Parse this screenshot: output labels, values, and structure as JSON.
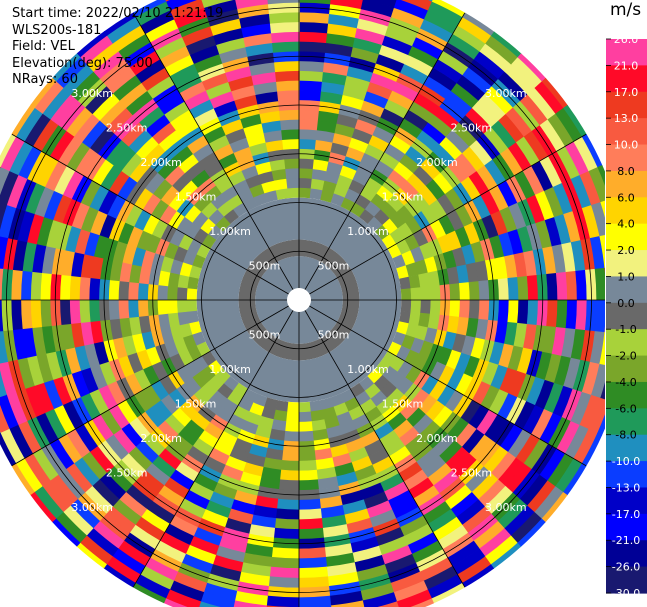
{
  "header": {
    "start_time": "Start time: 2022/02/10 21:21:19",
    "instrument": "WLS200s-181",
    "field": "Field: VEL",
    "elevation": "Elevation(deg): 75.00",
    "nrays": "NRays: 60"
  },
  "chart_data": {
    "type": "heatmap",
    "projection": "polar-ppi",
    "field": "VEL",
    "n_rays": 60,
    "max_range_km": 3.4,
    "range_rings": [
      {
        "label": "500m",
        "km": 0.5
      },
      {
        "label": "1.00km",
        "km": 1.0
      },
      {
        "label": "1.50km",
        "km": 1.5
      },
      {
        "label": "2.00km",
        "km": 2.0
      },
      {
        "label": "2.50km",
        "km": 2.5
      },
      {
        "label": "3.00km",
        "km": 3.0
      }
    ],
    "spokes_deg": [
      0,
      30,
      60,
      90,
      120,
      150,
      180,
      210,
      240,
      270,
      300,
      330
    ],
    "colorbar": {
      "unit": "m/s",
      "ticks": [
        "26.0",
        "21.0",
        "17.0",
        "13.0",
        "10.0",
        "8.0",
        "6.0",
        "4.0",
        "2.0",
        "1.0",
        "0.0",
        "-1.0",
        "-2.0",
        "-4.0",
        "-6.0",
        "-8.0",
        "-10.0",
        "-13.0",
        "-17.0",
        "-21.0",
        "-26.0",
        "-30.0"
      ],
      "colors": [
        "#ff3fa0",
        "#ff0a28",
        "#ee3a20",
        "#f85a40",
        "#ff7d5a",
        "#ffad2a",
        "#ffd400",
        "#ffff00",
        "#f2f27e",
        "#778899",
        "#696969",
        "#a8d23a",
        "#7aa62a",
        "#2f8c24",
        "#1f9a5a",
        "#1f8fbf",
        "#0a3dff",
        "#0000c8",
        "#0000ff",
        "#000096",
        "#191970"
      ]
    },
    "zones": [
      {
        "r_km": [
          0.0,
          0.12
        ],
        "color": "#ffffff"
      },
      {
        "r_km": [
          0.12,
          0.45
        ],
        "color": "#778899"
      },
      {
        "r_km": [
          0.45,
          0.62
        ],
        "color": "#696969"
      },
      {
        "r_km": [
          0.62,
          1.05
        ],
        "color": "#778899"
      },
      {
        "r_km": [
          1.05,
          1.45
        ],
        "color": "mixed-inner"
      },
      {
        "r_km": [
          1.45,
          2.05
        ],
        "color": "mixed-mid"
      },
      {
        "r_km": [
          2.05,
          3.4
        ],
        "color": "mixed-outer"
      }
    ]
  }
}
